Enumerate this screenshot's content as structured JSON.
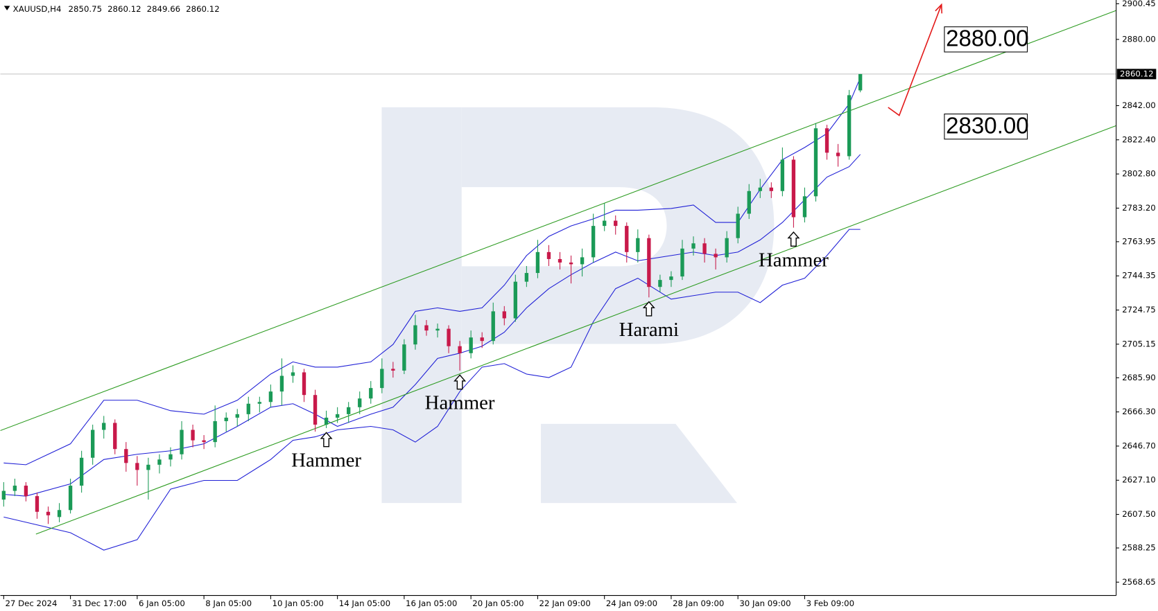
{
  "chart_data": {
    "type": "candlestick",
    "symbol": "XAUUSD,H4",
    "up_color": "#1b9a57",
    "down_color": "#c8194a",
    "candles": [
      [
        2616,
        2626,
        2612,
        2621
      ],
      [
        2621,
        2628,
        2618,
        2624
      ],
      [
        2624,
        2626,
        2615,
        2618
      ],
      [
        2618,
        2620,
        2605,
        2609
      ],
      [
        2609,
        2612,
        2602,
        2607
      ],
      [
        2606,
        2614,
        2603,
        2610
      ],
      [
        2610,
        2628,
        2608,
        2624
      ],
      [
        2624,
        2644,
        2620,
        2640
      ],
      [
        2640,
        2659,
        2636,
        2656
      ],
      [
        2656,
        2664,
        2651,
        2660
      ],
      [
        2660,
        2662,
        2642,
        2645
      ],
      [
        2645,
        2649,
        2632,
        2637
      ],
      [
        2637,
        2641,
        2624,
        2633
      ],
      [
        2633,
        2640,
        2616,
        2636
      ],
      [
        2636,
        2642,
        2631,
        2639
      ],
      [
        2639,
        2646,
        2635,
        2642
      ],
      [
        2642,
        2661,
        2639,
        2656
      ],
      [
        2656,
        2659,
        2646,
        2650
      ],
      [
        2650,
        2653,
        2645,
        2649
      ],
      [
        2649,
        2670,
        2646,
        2661
      ],
      [
        2661,
        2666,
        2655,
        2663
      ],
      [
        2663,
        2668,
        2658,
        2665
      ],
      [
        2665,
        2675,
        2661,
        2671
      ],
      [
        2671,
        2675,
        2666,
        2672
      ],
      [
        2672,
        2682,
        2669,
        2678
      ],
      [
        2678,
        2697,
        2670,
        2687
      ],
      [
        2687,
        2693,
        2683,
        2689
      ],
      [
        2689,
        2691,
        2672,
        2676
      ],
      [
        2676,
        2679,
        2655,
        2659
      ],
      [
        2659,
        2667,
        2657,
        2663
      ],
      [
        2663,
        2669,
        2660,
        2665
      ],
      [
        2665,
        2672,
        2660,
        2669
      ],
      [
        2669,
        2678,
        2665,
        2674
      ],
      [
        2674,
        2684,
        2671,
        2680
      ],
      [
        2680,
        2697,
        2677,
        2691
      ],
      [
        2691,
        2695,
        2686,
        2690
      ],
      [
        2690,
        2708,
        2688,
        2705
      ],
      [
        2705,
        2722,
        2702,
        2716
      ],
      [
        2716,
        2719,
        2710,
        2713
      ],
      [
        2713,
        2717,
        2709,
        2714
      ],
      [
        2714,
        2716,
        2700,
        2704
      ],
      [
        2704,
        2707,
        2690,
        2700
      ],
      [
        2700,
        2713,
        2697,
        2709
      ],
      [
        2709,
        2712,
        2703,
        2707
      ],
      [
        2707,
        2729,
        2705,
        2724
      ],
      [
        2724,
        2727,
        2716,
        2720
      ],
      [
        2720,
        2745,
        2718,
        2741
      ],
      [
        2741,
        2750,
        2738,
        2746
      ],
      [
        2746,
        2765,
        2743,
        2758
      ],
      [
        2758,
        2762,
        2750,
        2754
      ],
      [
        2754,
        2758,
        2748,
        2752
      ],
      [
        2752,
        2756,
        2740,
        2751
      ],
      [
        2751,
        2760,
        2744,
        2755
      ],
      [
        2755,
        2780,
        2752,
        2773
      ],
      [
        2773,
        2786,
        2770,
        2776
      ],
      [
        2776,
        2779,
        2768,
        2773
      ],
      [
        2773,
        2775,
        2752,
        2758
      ],
      [
        2758,
        2771,
        2752,
        2766
      ],
      [
        2766,
        2768,
        2732,
        2738
      ],
      [
        2738,
        2745,
        2735,
        2742
      ],
      [
        2742,
        2747,
        2738,
        2744
      ],
      [
        2744,
        2765,
        2742,
        2760
      ],
      [
        2760,
        2767,
        2756,
        2763
      ],
      [
        2763,
        2766,
        2752,
        2757
      ],
      [
        2757,
        2760,
        2748,
        2755
      ],
      [
        2755,
        2770,
        2752,
        2766
      ],
      [
        2766,
        2784,
        2763,
        2780
      ],
      [
        2780,
        2797,
        2777,
        2793
      ],
      [
        2793,
        2800,
        2789,
        2795
      ],
      [
        2795,
        2798,
        2789,
        2793
      ],
      [
        2793,
        2818,
        2790,
        2811
      ],
      [
        2811,
        2813,
        2772,
        2778
      ],
      [
        2778,
        2795,
        2775,
        2790
      ],
      [
        2790,
        2832,
        2787,
        2829
      ],
      [
        2829,
        2831,
        2811,
        2815
      ],
      [
        2815,
        2820,
        2807,
        2813
      ],
      [
        2813,
        2851,
        2811,
        2848
      ],
      [
        2850.75,
        2860.12,
        2849.66,
        2860.12
      ]
    ],
    "xlim": [
      -0.3,
      100
    ],
    "xticks": [
      {
        "value": 0,
        "label": "27 Dec 2024"
      },
      {
        "value": 6,
        "label": "31 Dec 17:00"
      },
      {
        "value": 12,
        "label": "6 Jan 05:00"
      },
      {
        "value": 18,
        "label": "8 Jan 05:00"
      },
      {
        "value": 24,
        "label": "10 Jan 05:00"
      },
      {
        "value": 30,
        "label": "14 Jan 05:00"
      },
      {
        "value": 36,
        "label": "16 Jan 05:00"
      },
      {
        "value": 42,
        "label": "20 Jan 05:00"
      },
      {
        "value": 48,
        "label": "22 Jan 09:00"
      },
      {
        "value": 54,
        "label": "24 Jan 09:00"
      },
      {
        "value": 60,
        "label": "28 Jan 09:00"
      },
      {
        "value": 66,
        "label": "30 Jan 09:00"
      },
      {
        "value": 72,
        "label": "3 Feb 09:00"
      }
    ],
    "ylim": [
      2561.0,
      2902.6
    ],
    "yticks": [
      2900.45,
      {
        "value": 2880,
        "label": "2880.00"
      },
      {
        "value": 2842,
        "label": "2842.00"
      },
      {
        "value": 2822.4,
        "label": "2822.40"
      },
      {
        "value": 2802.8,
        "label": "2802.80"
      },
      {
        "value": 2783.2,
        "label": "2783.20"
      },
      2763.95,
      2744.35,
      2724.75,
      2705.15,
      {
        "value": 2685.9,
        "label": "2685.90"
      },
      {
        "value": 2666.3,
        "label": "2666.30"
      },
      {
        "value": 2646.7,
        "label": "2646.70"
      },
      {
        "value": 2627.1,
        "label": "2627.10"
      },
      {
        "value": 2607.5,
        "label": "2607.50"
      },
      2588.25,
      2568.65
    ],
    "bands": {
      "color": "#1f1fd6",
      "x": [
        0,
        2,
        6,
        9,
        12,
        15,
        18,
        21,
        24,
        26,
        28,
        30,
        33,
        35,
        37,
        39,
        41,
        43,
        45,
        47,
        49,
        51,
        53,
        55,
        57,
        60,
        62,
        64,
        66,
        68,
        70,
        72,
        74,
        76,
        77
      ],
      "lines": [
        [
          2637,
          2636,
          2648,
          2673,
          2673,
          2667,
          2665,
          2673,
          2688,
          2695,
          2692,
          2692,
          2695,
          2705,
          2724,
          2726,
          2724,
          2726,
          2739,
          2756,
          2767,
          2773,
          2777,
          2782,
          2782,
          2783,
          2785,
          2775,
          2775,
          2794,
          2811,
          2818,
          2826,
          2843,
          2858
        ],
        [
          2619,
          2618,
          2625,
          2639,
          2642,
          2644,
          2648,
          2658,
          2669,
          2671,
          2665,
          2658,
          2665,
          2669,
          2682,
          2697,
          2700,
          2704,
          2712,
          2726,
          2737,
          2745,
          2752,
          2758,
          2753,
          2756,
          2758,
          2756,
          2758,
          2765,
          2775,
          2788,
          2801,
          2807,
          2814
        ],
        [
          2606,
          2603,
          2597,
          2587,
          2593,
          2622,
          2627,
          2627,
          2639,
          2650,
          2652,
          2656,
          2658,
          2656,
          2649,
          2658,
          2678,
          2692,
          2694,
          2688,
          2686,
          2692,
          2718,
          2737,
          2743,
          2731,
          2733,
          2735,
          2735,
          2729,
          2739,
          2743,
          2756,
          2771,
          2771
        ]
      ]
    },
    "channel": {
      "color": "#2a9a1e",
      "lines": [
        {
          "x": [
            -0.3,
            100
          ],
          "values": [
            2655.6,
            2896.6
          ]
        },
        {
          "x": [
            2.9,
            100
          ],
          "values": [
            2596.2,
            2830.5
          ]
        }
      ]
    },
    "forecast": {
      "color": "#e31a1a",
      "x": [
        79.5,
        80.5,
        84.3
      ],
      "values": [
        2841.0,
        2836.4,
        2900.0
      ]
    },
    "levels": [
      {
        "value": 2880,
        "label": "2880.00"
      },
      {
        "value": 2830,
        "label": "2830.00"
      }
    ],
    "annotations": [
      {
        "text": "Hammer",
        "candle": 29
      },
      {
        "text": "Hammer",
        "candle": 41
      },
      {
        "text": "Harami",
        "candle": 58
      },
      {
        "text": "Hammer",
        "candle": 71
      }
    ]
  }
}
